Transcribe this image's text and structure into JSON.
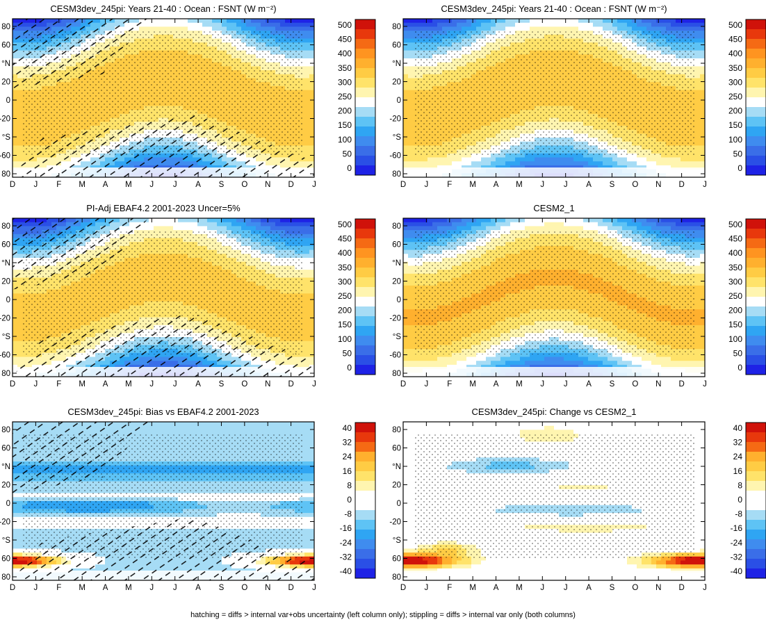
{
  "footer": "hatching = diffs > internal var+obs uncertainty (left column only); stippling = diffs > internal var only (both columns)",
  "colors": {
    "mean_scale": [
      "#1e22e6",
      "#2a4fe6",
      "#3a6ee8",
      "#3f8cef",
      "#2fa5f3",
      "#5ec3f5",
      "#a6dcf5",
      "#ffffff",
      "#fff5b0",
      "#ffe36a",
      "#ffcc44",
      "#ffb02e",
      "#ff9420",
      "#f56a14",
      "#e8380c",
      "#d0120a"
    ],
    "diff_scale": [
      "#1e22e6",
      "#2a4fe6",
      "#3a6ee8",
      "#3f8cef",
      "#2fa5f3",
      "#5ec3f5",
      "#a6dcf5",
      "#ffffff",
      "#ffffff",
      "#fff5b0",
      "#ffe36a",
      "#ffcc44",
      "#ffb02e",
      "#f56a14",
      "#e8380c",
      "#d0120a"
    ]
  },
  "chart_data": [
    {
      "type": "heatmap",
      "title": "CESM3dev_245pi: Years 21-40 : Ocean : FSNT (W m⁻²)",
      "kind": "mean",
      "months": [
        "D",
        "J",
        "F",
        "M",
        "A",
        "M",
        "J",
        "J",
        "A",
        "S",
        "O",
        "N",
        "D",
        "J"
      ],
      "lat_ticks": [
        "80",
        "60",
        "°N",
        "20",
        "0",
        "-20",
        "°S",
        "-60",
        "80"
      ],
      "lat_range": [
        -90,
        90
      ],
      "colorbar_labels": [
        "500",
        "450",
        "400",
        "350",
        "300",
        "250",
        "200",
        "150",
        "100",
        "50",
        "0"
      ],
      "hatching": true,
      "stippling": true
    },
    {
      "type": "heatmap",
      "title": "CESM3dev_245pi: Years 21-40 : Ocean : FSNT (W m⁻²)",
      "kind": "mean",
      "months": [
        "D",
        "J",
        "F",
        "M",
        "A",
        "M",
        "J",
        "J",
        "A",
        "S",
        "O",
        "N",
        "D",
        "J"
      ],
      "lat_ticks": [
        "80",
        "60",
        "°N",
        "20",
        "0",
        "-20",
        "°S",
        "-60",
        "80"
      ],
      "lat_range": [
        -90,
        90
      ],
      "colorbar_labels": [
        "500",
        "450",
        "400",
        "350",
        "300",
        "250",
        "200",
        "150",
        "100",
        "50",
        "0"
      ],
      "hatching": false,
      "stippling": true
    },
    {
      "type": "heatmap",
      "title": "PI-Adj EBAF4.2 2001-2023 Uncer=5%",
      "kind": "mean",
      "months": [
        "D",
        "J",
        "F",
        "M",
        "A",
        "M",
        "J",
        "J",
        "A",
        "S",
        "O",
        "N",
        "D",
        "J"
      ],
      "lat_ticks": [
        "80",
        "60",
        "°N",
        "20",
        "0",
        "-20",
        "°S",
        "-60",
        "80"
      ],
      "lat_range": [
        -90,
        90
      ],
      "colorbar_labels": [
        "500",
        "450",
        "400",
        "350",
        "300",
        "250",
        "200",
        "150",
        "100",
        "50",
        "0"
      ],
      "hatching": true,
      "stippling": true
    },
    {
      "type": "heatmap",
      "title": "CESM2_1",
      "kind": "mean",
      "months": [
        "D",
        "J",
        "F",
        "M",
        "A",
        "M",
        "J",
        "J",
        "A",
        "S",
        "O",
        "N",
        "D",
        "J"
      ],
      "lat_ticks": [
        "80",
        "60",
        "°N",
        "20",
        "0",
        "-20",
        "°S",
        "-60",
        "80"
      ],
      "lat_range": [
        -90,
        90
      ],
      "colorbar_labels": [
        "500",
        "450",
        "400",
        "350",
        "300",
        "250",
        "200",
        "150",
        "100",
        "50",
        "0"
      ],
      "hatching": false,
      "stippling": true
    },
    {
      "type": "heatmap",
      "title": "CESM3dev_245pi: Bias vs EBAF4.2 2001-2023",
      "kind": "bias",
      "months": [
        "D",
        "J",
        "F",
        "M",
        "A",
        "M",
        "J",
        "J",
        "A",
        "S",
        "O",
        "N",
        "D",
        "J"
      ],
      "lat_ticks": [
        "80",
        "60",
        "°N",
        "20",
        "0",
        "-20",
        "°S",
        "60",
        "80"
      ],
      "lat_range": [
        -90,
        90
      ],
      "colorbar_labels": [
        "40",
        "32",
        "24",
        "16",
        "8",
        "0",
        "-8",
        "-16",
        "-24",
        "-32",
        "-40"
      ],
      "hatching": true,
      "stippling": true
    },
    {
      "type": "heatmap",
      "title": "CESM3dev_245pi: Change vs CESM2_1",
      "kind": "change",
      "months": [
        "D",
        "J",
        "F",
        "M",
        "A",
        "M",
        "J",
        "J",
        "A",
        "S",
        "O",
        "N",
        "D",
        "J"
      ],
      "lat_ticks": [
        "80",
        "60",
        "°N",
        "20",
        "0",
        "-20",
        "°S",
        "60",
        "80"
      ],
      "lat_range": [
        -90,
        90
      ],
      "colorbar_labels": [
        "40",
        "32",
        "24",
        "16",
        "8",
        "0",
        "-8",
        "-16",
        "-24",
        "-32",
        "-40"
      ],
      "hatching": false,
      "stippling": true
    }
  ]
}
